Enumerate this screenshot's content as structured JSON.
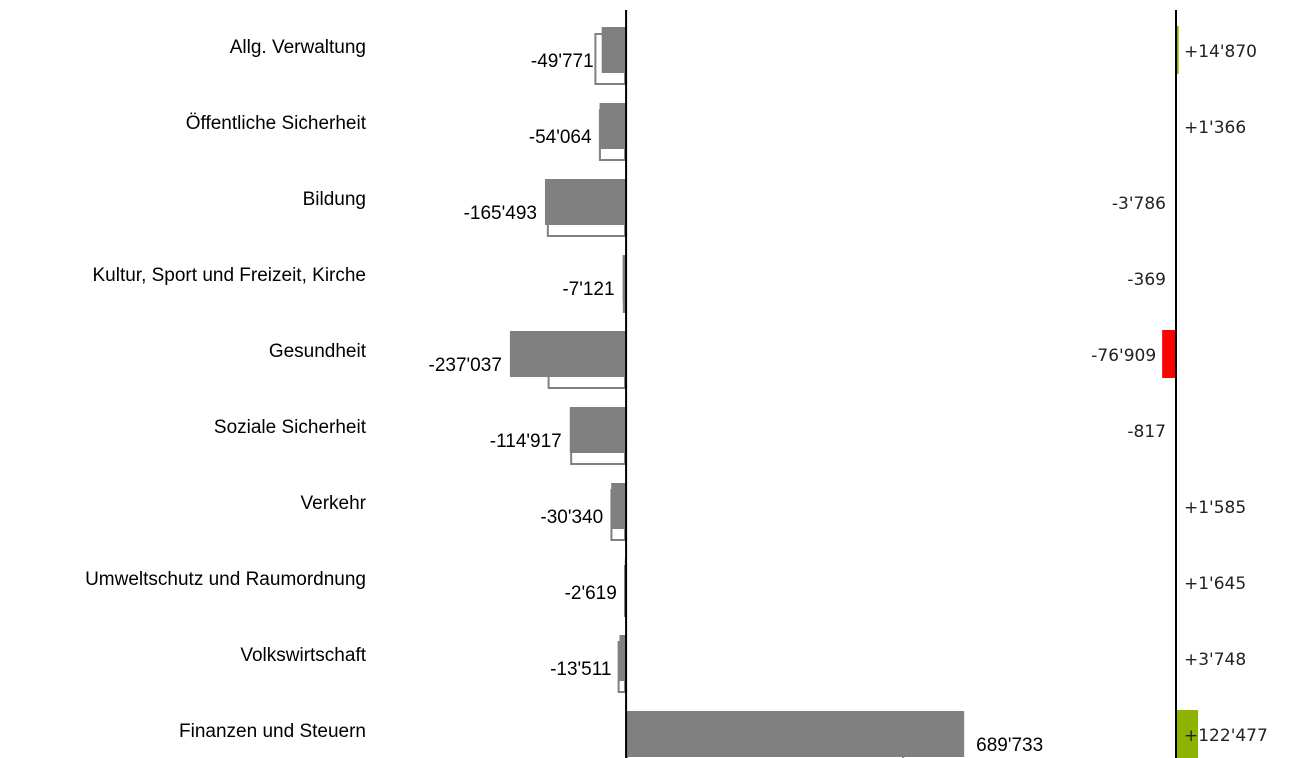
{
  "chart_data": {
    "type": "bar",
    "orientation": "horizontal",
    "categories": [
      "Allg. Verwaltung",
      "Öffentliche Sicherheit",
      "Bildung",
      "Kultur, Sport und Freizeit, Kirche",
      "Gesundheit",
      "Soziale Sicherheit",
      "Verkehr",
      "Umweltschutz und Raumordnung",
      "Volkswirtschaft",
      "Finanzen und Steuern"
    ],
    "values": [
      -49771,
      -54064,
      -165493,
      -7121,
      -237037,
      -114917,
      -30340,
      -2619,
      -13511,
      689733
    ],
    "value_labels": [
      "-49'771",
      "-54'064",
      "-165'493",
      "-7'121",
      "-237'037",
      "-114'917",
      "-30'340",
      "-2'619",
      "-13'511",
      "689'733"
    ],
    "color": "#808080",
    "xlim": [
      -500000,
      720000
    ],
    "deltas": [
      14870,
      1366,
      -3786,
      -369,
      -76909,
      -817,
      1585,
      1645,
      3748,
      122477
    ],
    "delta_labels": [
      "+14'870",
      "+1'366",
      "-3'786",
      "-369",
      "-76'909",
      "-817",
      "+1'585",
      "+1'645",
      "+3'748",
      "+122'477"
    ],
    "delta_xlim": [
      -1000000,
      700000
    ],
    "positive_color": "#8cb400",
    "negative_color": "#ff0000"
  }
}
